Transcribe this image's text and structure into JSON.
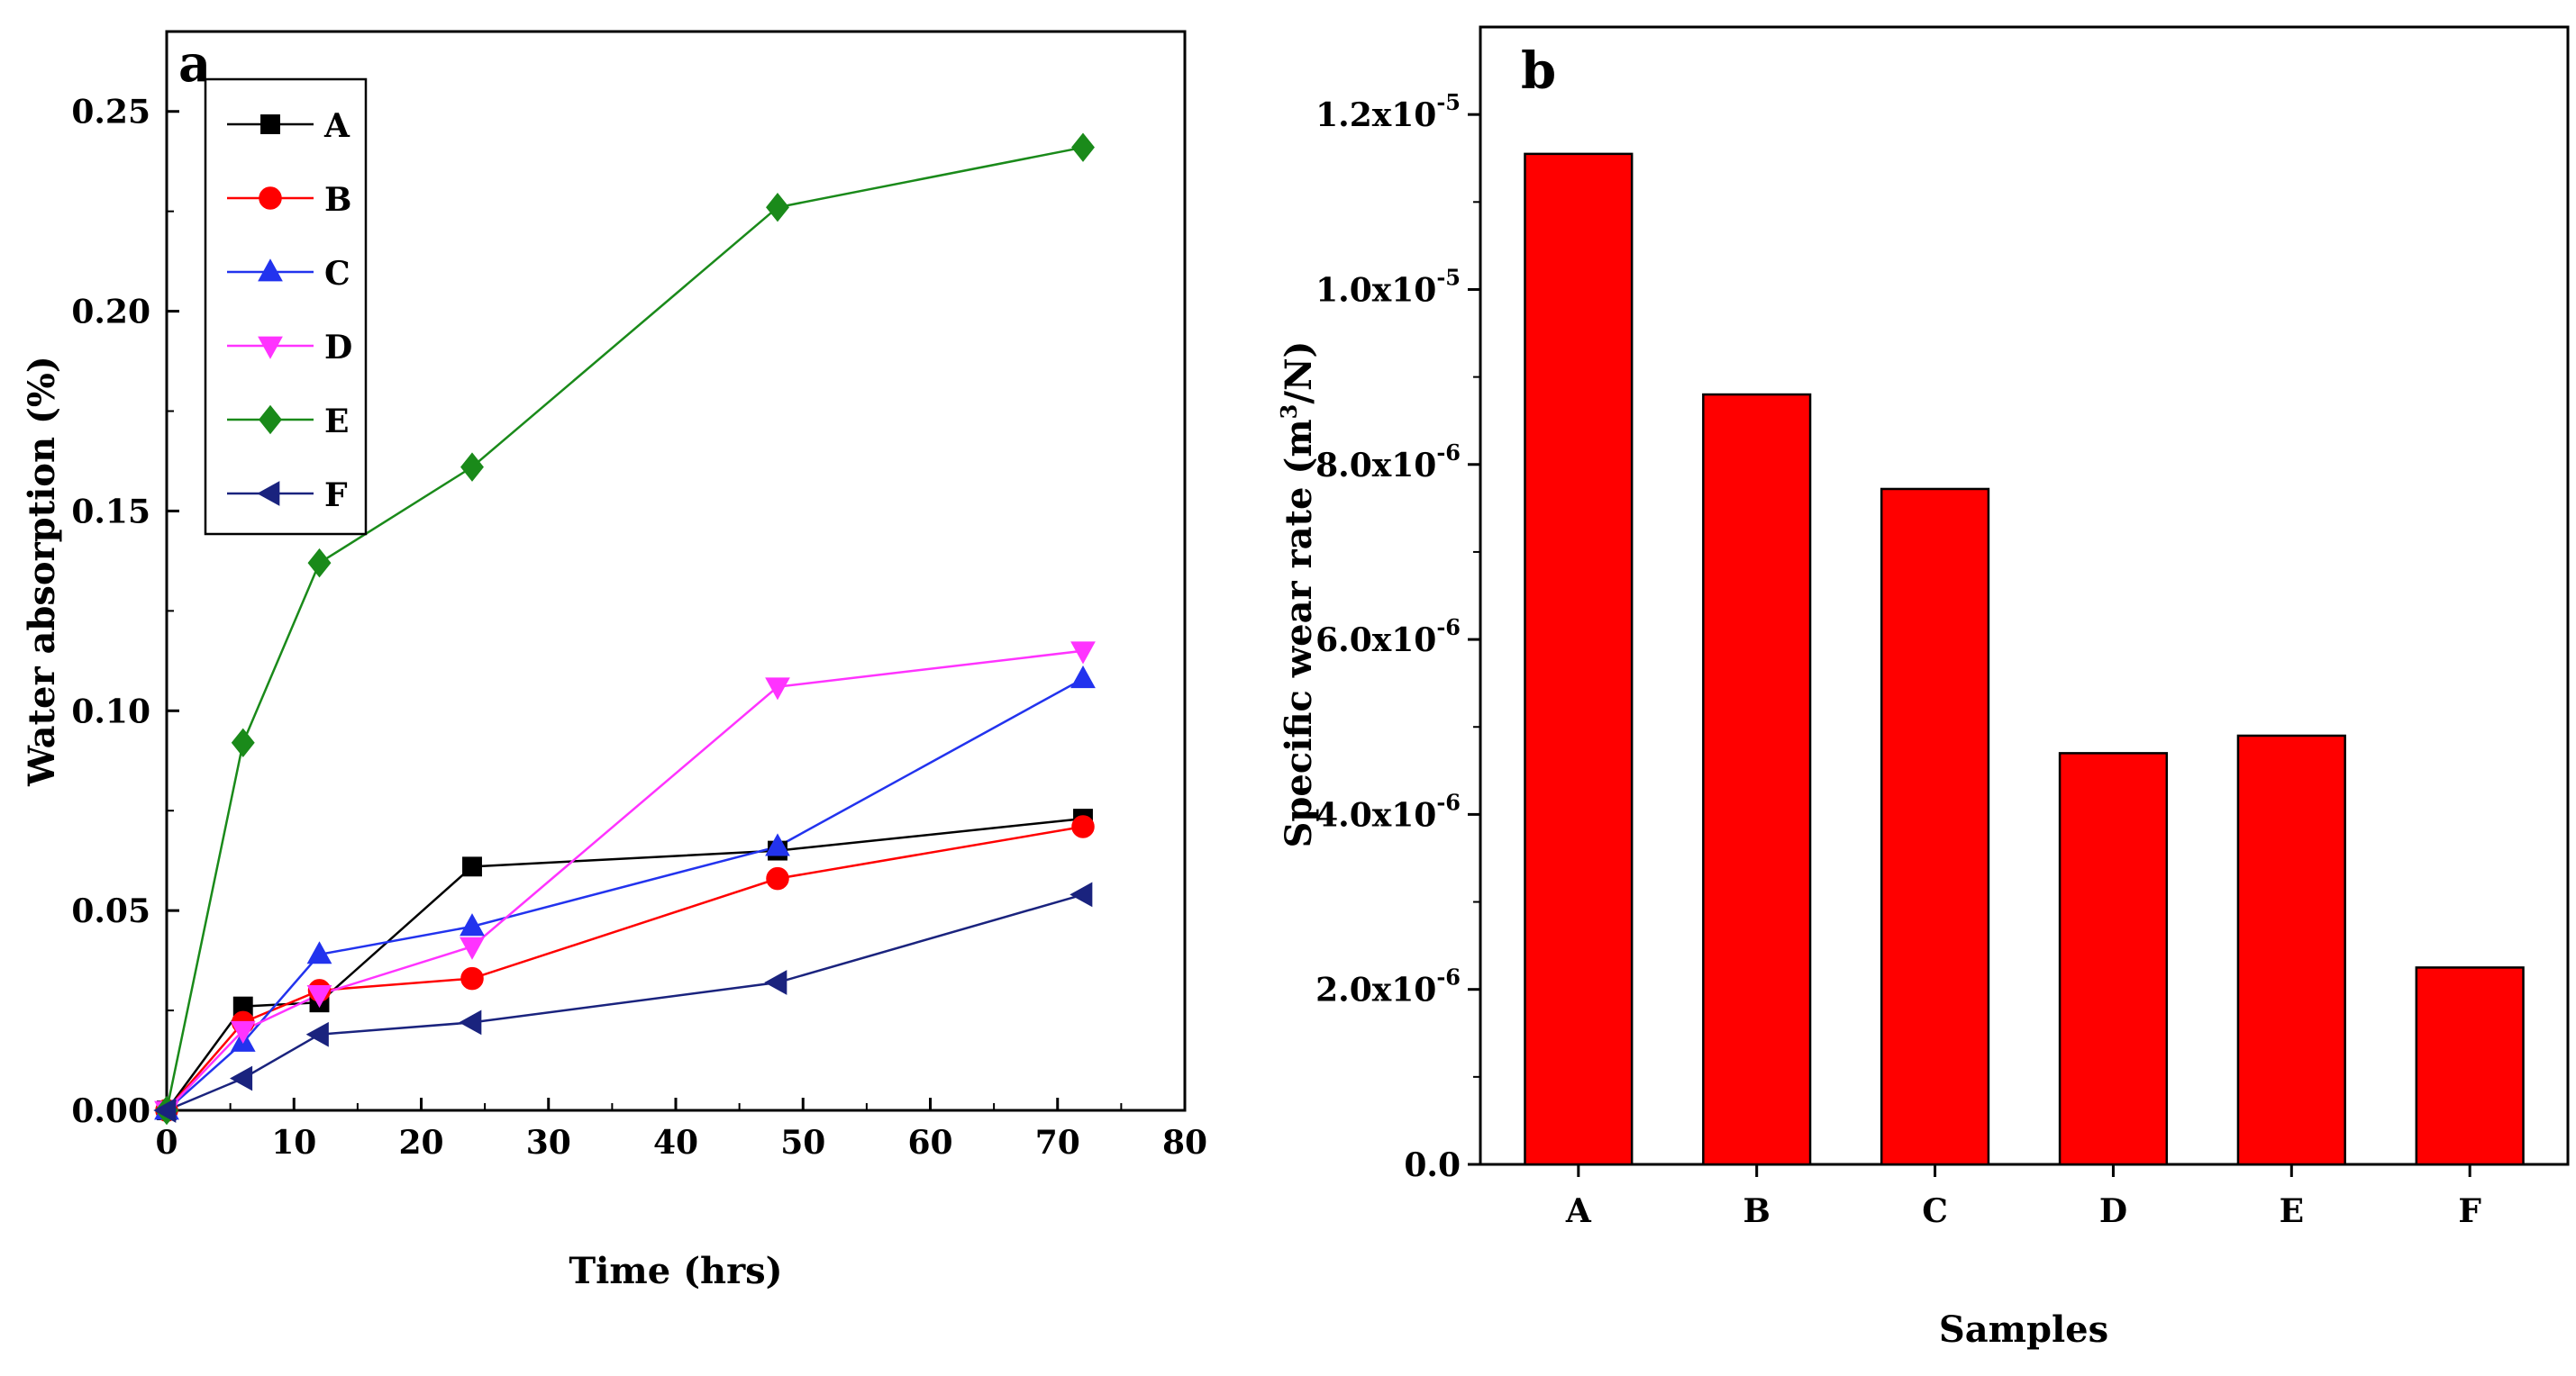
{
  "chart_data": [
    {
      "type": "line",
      "panel_label": "a",
      "xlabel": "Time (hrs)",
      "ylabel": "Water absorption (%)",
      "xlim": [
        0,
        80
      ],
      "ylim": [
        0,
        0.27
      ],
      "xticks": [
        "0",
        "10",
        "20",
        "30",
        "40",
        "50",
        "60",
        "70",
        "80"
      ],
      "yticks": [
        "0.00",
        "0.05",
        "0.10",
        "0.15",
        "0.20",
        "0.25"
      ],
      "legend_position": "top-left",
      "series": [
        {
          "name": "A",
          "color": "#000000",
          "marker": "square",
          "x": [
            0,
            6,
            12,
            24,
            48,
            72
          ],
          "y": [
            0,
            0.026,
            0.027,
            0.061,
            0.065,
            0.073
          ]
        },
        {
          "name": "B",
          "color": "#ff0000",
          "marker": "circle",
          "x": [
            0,
            6,
            12,
            24,
            48,
            72
          ],
          "y": [
            0,
            0.022,
            0.03,
            0.033,
            0.058,
            0.071
          ]
        },
        {
          "name": "C",
          "color": "#2233ee",
          "marker": "triangle-up",
          "x": [
            0,
            6,
            12,
            24,
            48,
            72
          ],
          "y": [
            0,
            0.017,
            0.039,
            0.046,
            0.066,
            0.108
          ]
        },
        {
          "name": "D",
          "color": "#ff33ff",
          "marker": "triangle-down",
          "x": [
            0,
            6,
            12,
            24,
            48,
            72
          ],
          "y": [
            0,
            0.02,
            0.029,
            0.041,
            0.106,
            0.115
          ]
        },
        {
          "name": "E",
          "color": "#1a8a1a",
          "marker": "diamond",
          "x": [
            0,
            6,
            12,
            24,
            48,
            72
          ],
          "y": [
            0,
            0.092,
            0.137,
            0.161,
            0.226,
            0.241
          ]
        },
        {
          "name": "F",
          "color": "#1a237e",
          "marker": "triangle-left",
          "x": [
            0,
            6,
            12,
            24,
            48,
            72
          ],
          "y": [
            0,
            0.008,
            0.019,
            0.022,
            0.032,
            0.054
          ]
        }
      ]
    },
    {
      "type": "bar",
      "panel_label": "b",
      "xlabel": "Samples",
      "ylabel": "Specific wear rate (m3/N)",
      "ylabel_main": "Specific wear rate (m",
      "ylabel_sup": "3",
      "ylabel_end": "/N)",
      "ylim": [
        0,
        1.3e-05
      ],
      "categories": [
        "A",
        "B",
        "C",
        "D",
        "E",
        "F"
      ],
      "values": [
        1.155e-05,
        8.8e-06,
        7.72e-06,
        4.7e-06,
        4.9e-06,
        2.25e-06
      ],
      "bar_color": "#ff0000",
      "yticks": [
        {
          "value": 0,
          "mantissa": "0.0",
          "exponent": ""
        },
        {
          "value": 2e-06,
          "mantissa": "2.0x10",
          "exponent": "-6"
        },
        {
          "value": 4e-06,
          "mantissa": "4.0x10",
          "exponent": "-6"
        },
        {
          "value": 6e-06,
          "mantissa": "6.0x10",
          "exponent": "-6"
        },
        {
          "value": 8e-06,
          "mantissa": "8.0x10",
          "exponent": "-6"
        },
        {
          "value": 1e-05,
          "mantissa": "1.0x10",
          "exponent": "-5"
        },
        {
          "value": 1.2e-05,
          "mantissa": "1.2x10",
          "exponent": "-5"
        }
      ]
    }
  ]
}
